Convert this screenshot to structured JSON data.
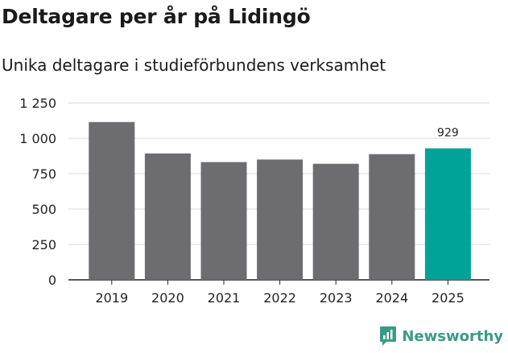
{
  "title": "Deltagare per år på Lidingö",
  "subtitle": "Unika deltagare i studieförbundens verksamhet",
  "brand": "Newsworthy",
  "colors": {
    "bar": "#6d6c71",
    "highlight": "#00a398",
    "grid": "#d8d8d8",
    "axis": "#222222",
    "brand": "#3a9a86"
  },
  "chart_data": {
    "type": "bar",
    "title": "Deltagare per år på Lidingö",
    "subtitle": "Unika deltagare i studieförbundens verksamhet",
    "xlabel": "",
    "ylabel": "",
    "categories": [
      "2019",
      "2020",
      "2021",
      "2022",
      "2023",
      "2024",
      "2025"
    ],
    "values": [
      1115,
      893,
      832,
      850,
      820,
      888,
      929
    ],
    "highlight_index": 6,
    "data_labels": [
      {
        "index": 6,
        "text": "929"
      }
    ],
    "ylim": [
      0,
      1250
    ],
    "yticks": [
      0,
      250,
      500,
      750,
      1000,
      1250
    ],
    "ytick_labels": [
      "0",
      "250",
      "500",
      "750",
      "1 000",
      "1 250"
    ],
    "grid": true,
    "legend": "none"
  }
}
